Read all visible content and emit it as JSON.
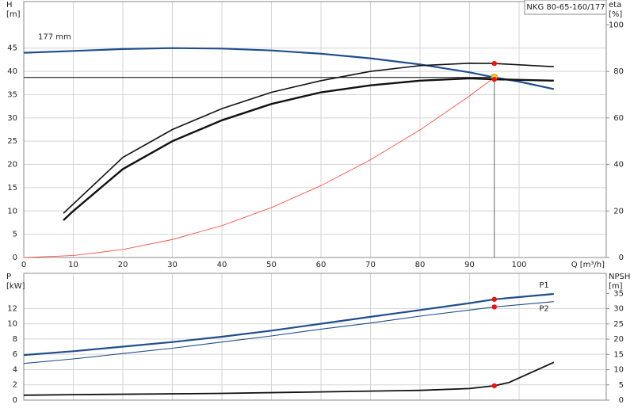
{
  "chart_data": [
    {
      "type": "line",
      "title": "NKG 80-65-160/177",
      "xlabel": "Q [m³/h]",
      "ylabel": [
        "H",
        "[m]"
      ],
      "y2label": [
        "eta",
        "[%]"
      ],
      "xlim": [
        0,
        117.6
      ],
      "xticks": [
        0,
        10,
        20,
        30,
        40,
        50,
        60,
        70,
        80,
        90,
        100
      ],
      "ylim": [
        0,
        55
      ],
      "yticks": [
        0,
        5,
        10,
        15,
        20,
        25,
        30,
        35,
        40,
        45
      ],
      "y2lim": [
        0,
        110
      ],
      "y2ticks": [
        0,
        20,
        40,
        60,
        80,
        100
      ],
      "grid": true,
      "operating_point": {
        "x": 95,
        "y": 38.7
      },
      "series": [
        {
          "name": "177 mm",
          "color": "#1f4e8c",
          "width": 2.2,
          "axis": "y",
          "x": [
            0,
            10,
            20,
            30,
            40,
            50,
            60,
            70,
            80,
            90,
            95,
            100,
            107
          ],
          "values": [
            44.0,
            44.4,
            44.8,
            45.0,
            44.9,
            44.5,
            43.8,
            42.8,
            41.5,
            39.8,
            38.7,
            37.8,
            36.2
          ]
        },
        {
          "color": "#ff3b30",
          "width": 0.8,
          "axis": "y",
          "x": [
            0,
            10,
            20,
            30,
            40,
            50,
            60,
            70,
            80,
            90,
            95
          ],
          "values": [
            0,
            0.43,
            1.72,
            3.86,
            6.86,
            10.72,
            15.44,
            21.01,
            27.44,
            34.73,
            38.7
          ]
        },
        {
          "color": "#111",
          "width": 1.6,
          "axis": "y2",
          "x": [
            8,
            10,
            20,
            30,
            40,
            50,
            60,
            70,
            80,
            90,
            95,
            107
          ],
          "values": [
            19,
            23,
            43,
            55,
            64,
            71,
            76,
            80,
            82.5,
            83.5,
            83.4,
            82
          ]
        },
        {
          "color": "#111",
          "width": 2.4,
          "axis": "y2",
          "x": [
            8,
            10,
            20,
            30,
            40,
            50,
            60,
            70,
            80,
            90,
            95,
            107
          ],
          "values": [
            16,
            20,
            38,
            50,
            59,
            66,
            71,
            74,
            76,
            77,
            76.6,
            76
          ]
        }
      ]
    },
    {
      "type": "line",
      "ylabel": [
        "P",
        "[kW]"
      ],
      "y2label": [
        "NPSH",
        "[m]"
      ],
      "xlim": [
        0,
        117.6
      ],
      "ylim": [
        0,
        16.6
      ],
      "yticks": [
        0,
        2,
        4,
        6,
        8,
        10,
        12
      ],
      "y2lim": [
        0,
        41.6
      ],
      "y2ticks": [
        0,
        5,
        10,
        15,
        20,
        25,
        30,
        35
      ],
      "grid": true,
      "operating_x": 95,
      "series": [
        {
          "name": "P1",
          "color": "#1f4e8c",
          "width": 2.2,
          "axis": "y",
          "x": [
            0,
            10,
            20,
            30,
            40,
            50,
            60,
            70,
            80,
            90,
            95,
            107
          ],
          "values": [
            5.9,
            6.4,
            7.0,
            7.6,
            8.3,
            9.1,
            10.0,
            10.9,
            11.8,
            12.7,
            13.2,
            13.9
          ]
        },
        {
          "name": "P2",
          "color": "#1f4e8c",
          "width": 1.1,
          "axis": "y",
          "x": [
            0,
            10,
            20,
            30,
            40,
            50,
            60,
            70,
            80,
            90,
            95,
            107
          ],
          "values": [
            4.8,
            5.4,
            6.1,
            6.8,
            7.6,
            8.4,
            9.3,
            10.1,
            11.0,
            11.8,
            12.2,
            12.9
          ]
        },
        {
          "color": "#111",
          "width": 1.8,
          "axis": "y2",
          "x": [
            0,
            10,
            40,
            80,
            90,
            95,
            98,
            107
          ],
          "values": [
            1.6,
            1.8,
            2.2,
            3.2,
            3.8,
            4.7,
            5.8,
            12.4
          ]
        }
      ]
    }
  ]
}
